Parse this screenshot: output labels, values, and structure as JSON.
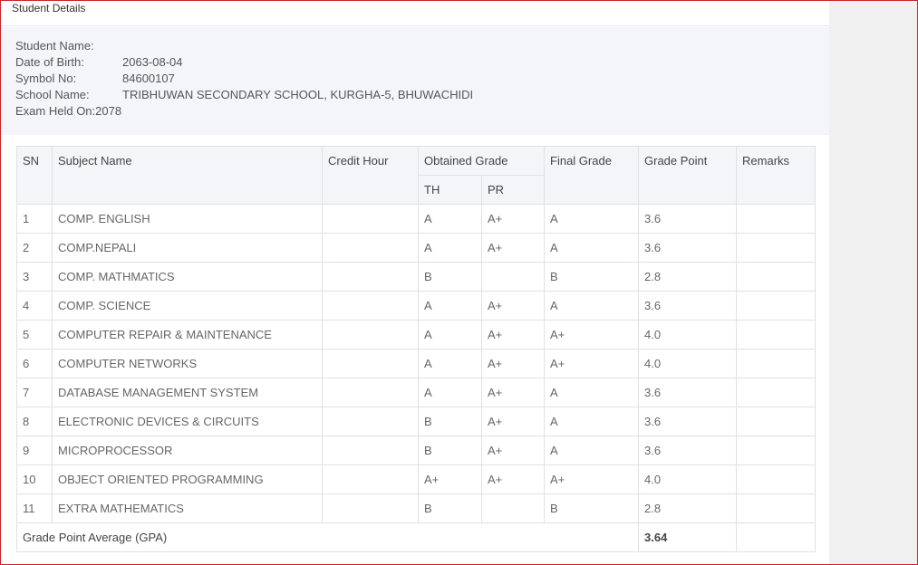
{
  "panel": {
    "title": "Student Details"
  },
  "student": {
    "name_label": "Student Name:",
    "name_value": "",
    "dob_label": "Date of Birth:",
    "dob_value": "2063-08-04",
    "symbol_label": "Symbol No:",
    "symbol_value": "84600107",
    "school_label": "School Name:",
    "school_value": "TRIBHUWAN SECONDARY SCHOOL, KURGHA-5, BHUWACHIDI",
    "exam_label": "Exam Held On:",
    "exam_value": "2078"
  },
  "table": {
    "headers": {
      "sn": "SN",
      "subject": "Subject Name",
      "credit": "Credit Hour",
      "obtained": "Obtained Grade",
      "th": "TH",
      "pr": "PR",
      "final": "Final Grade",
      "point": "Grade Point",
      "remarks": "Remarks"
    },
    "rows": [
      {
        "sn": "1",
        "subject": "COMP. ENGLISH",
        "credit": "",
        "th": "A",
        "pr": "A+",
        "final": "A",
        "point": "3.6",
        "remarks": ""
      },
      {
        "sn": "2",
        "subject": "COMP.NEPALI",
        "credit": "",
        "th": "A",
        "pr": "A+",
        "final": "A",
        "point": "3.6",
        "remarks": ""
      },
      {
        "sn": "3",
        "subject": "COMP. MATHMATICS",
        "credit": "",
        "th": "B",
        "pr": "",
        "final": "B",
        "point": "2.8",
        "remarks": ""
      },
      {
        "sn": "4",
        "subject": "COMP. SCIENCE",
        "credit": "",
        "th": "A",
        "pr": "A+",
        "final": "A",
        "point": "3.6",
        "remarks": ""
      },
      {
        "sn": "5",
        "subject": "COMPUTER REPAIR & MAINTENANCE",
        "credit": "",
        "th": "A",
        "pr": "A+",
        "final": "A+",
        "point": "4.0",
        "remarks": ""
      },
      {
        "sn": "6",
        "subject": "COMPUTER NETWORKS",
        "credit": "",
        "th": "A",
        "pr": "A+",
        "final": "A+",
        "point": "4.0",
        "remarks": ""
      },
      {
        "sn": "7",
        "subject": "DATABASE MANAGEMENT SYSTEM",
        "credit": "",
        "th": "A",
        "pr": "A+",
        "final": "A",
        "point": "3.6",
        "remarks": ""
      },
      {
        "sn": "8",
        "subject": "ELECTRONIC DEVICES & CIRCUITS",
        "credit": "",
        "th": "B",
        "pr": "A+",
        "final": "A",
        "point": "3.6",
        "remarks": ""
      },
      {
        "sn": "9",
        "subject": "MICROPROCESSOR",
        "credit": "",
        "th": "B",
        "pr": "A+",
        "final": "A",
        "point": "3.6",
        "remarks": ""
      },
      {
        "sn": "10",
        "subject": "OBJECT ORIENTED PROGRAMMING",
        "credit": "",
        "th": "A+",
        "pr": "A+",
        "final": "A+",
        "point": "4.0",
        "remarks": ""
      },
      {
        "sn": "11",
        "subject": "EXTRA MATHEMATICS",
        "credit": "",
        "th": "B",
        "pr": "",
        "final": "B",
        "point": "2.8",
        "remarks": ""
      }
    ],
    "gpa_label": "Grade Point Average (GPA)",
    "gpa_value": "3.64"
  },
  "colors": {
    "frame_border": "#c8242b",
    "info_bg": "#f3f5f9",
    "table_border": "#dee2e6"
  }
}
